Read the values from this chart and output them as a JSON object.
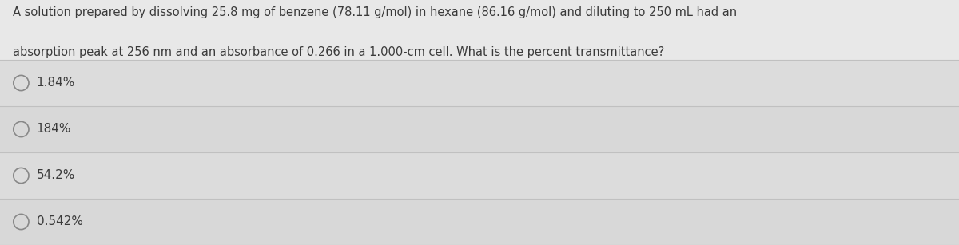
{
  "background_color": "#e8e8e8",
  "question_bg_color": "#e8e8e8",
  "option_bg_color": "#e0e0e0",
  "question_text_line1": "A solution prepared by dissolving 25.8 mg of benzene (78.11 g/mol) in hexane (86.16 g/mol) and diluting to 250 mL had an",
  "question_text_line2": "absorption peak at 256 nm and an absorbance of 0.266 in a 1.000-cm cell. What is the percent transmittance?",
  "options": [
    "1.84%",
    "184%",
    "54.2%",
    "0.542%"
  ],
  "text_color": "#3a3a3a",
  "line_color": "#c0c0c0",
  "circle_edge_color": "#888888",
  "question_fontsize": 10.5,
  "option_fontsize": 11.0,
  "fig_width": 12.0,
  "fig_height": 3.07,
  "dpi": 100
}
